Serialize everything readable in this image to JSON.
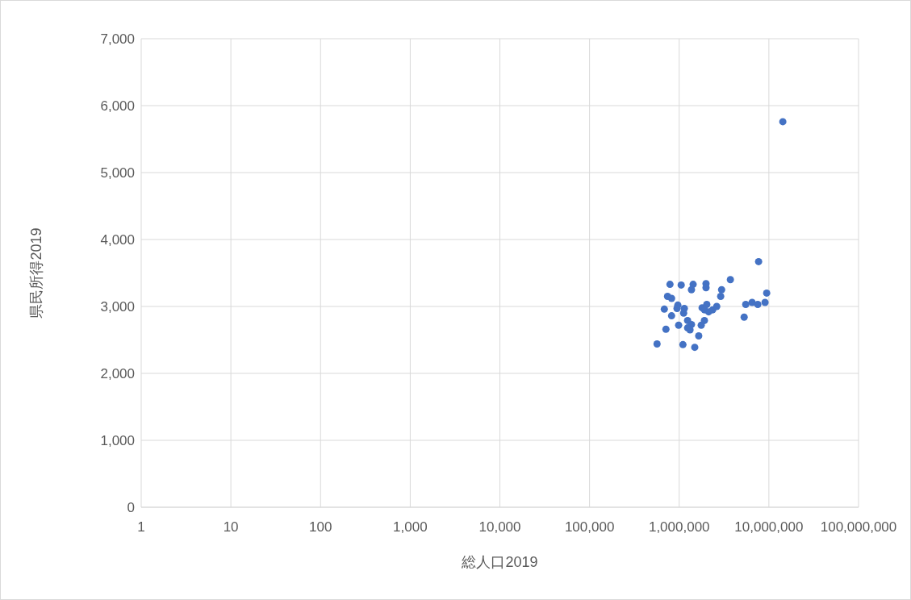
{
  "chart_data": {
    "type": "scatter",
    "xlabel": "総人口2019",
    "ylabel": "県民所得2019",
    "log": "x",
    "xlim": [
      1,
      100000000
    ],
    "xticks": [
      1,
      10,
      100,
      {
        "value": 1000,
        "label": "1,000"
      },
      {
        "value": 10000,
        "label": "10,000"
      },
      {
        "value": 100000,
        "label": "100,000"
      },
      {
        "value": 1000000,
        "label": "1,000,000"
      },
      {
        "value": 10000000,
        "label": "10,000,000"
      },
      {
        "value": 100000000,
        "label": "100,000,000"
      }
    ],
    "ylim": [
      0,
      7000
    ],
    "yticks": [
      0,
      {
        "value": 1000,
        "label": "1,000"
      },
      {
        "value": 2000,
        "label": "2,000"
      },
      {
        "value": 3000,
        "label": "3,000"
      },
      {
        "value": 4000,
        "label": "4,000"
      },
      {
        "value": 5000,
        "label": "5,000"
      },
      {
        "value": 6000,
        "label": "6,000"
      },
      {
        "value": 7000,
        "label": "7,000"
      }
    ],
    "grid": true,
    "legend": false,
    "marker": "circle",
    "series": [
      {
        "color": "#4472c4",
        "x": [
          789000,
          1052000,
          1430000,
          1370000,
          1990000,
          1990000,
          3720000,
          2970000,
          2900000,
          9450000,
          741000,
          822000,
          965000,
          945000,
          1140000,
          1120000,
          682000,
          822000,
          1800000,
          2030000,
          1910000,
          2130000,
          2360000,
          2620000,
          5520000,
          6500000,
          7520000,
          9060000,
          5300000,
          1910000,
          1760000,
          985000,
          1240000,
          1370000,
          1240000,
          1320000,
          711000,
          1650000,
          566000,
          1100000,
          1490000,
          7680000,
          14300000
        ],
        "values": [
          3330,
          3320,
          3330,
          3250,
          3340,
          3280,
          3400,
          3250,
          3150,
          3200,
          3150,
          3120,
          3020,
          2970,
          2970,
          2900,
          2960,
          2860,
          2980,
          3030,
          2950,
          2920,
          2950,
          3000,
          3030,
          3060,
          3030,
          3060,
          2840,
          2790,
          2720,
          2720,
          2790,
          2730,
          2680,
          2650,
          2660,
          2560,
          2440,
          2430,
          2390,
          3670,
          5760
        ]
      }
    ]
  }
}
